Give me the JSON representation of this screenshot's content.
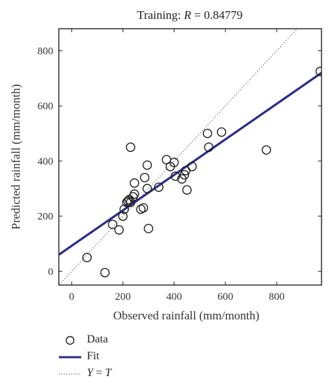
{
  "chart_data": {
    "type": "scatter",
    "title_prefix": "Training: ",
    "title_r": "R",
    "title_suffix": " = 0.84779",
    "xlabel": "Observed rainfall (mm/month)",
    "ylabel": "Predicted rainfall (mm/month)",
    "xlim": [
      -50,
      975
    ],
    "ylim": [
      -50,
      880
    ],
    "xticks": [
      0,
      200,
      400,
      600,
      800
    ],
    "yticks": [
      0,
      200,
      400,
      600,
      800
    ],
    "grid": false,
    "legend_placement": "bottom",
    "series": [
      {
        "name": "Data",
        "kind": "points",
        "marker": "open-circle",
        "color": "#222222",
        "points": [
          [
            60,
            50
          ],
          [
            130,
            -5
          ],
          [
            160,
            170
          ],
          [
            185,
            150
          ],
          [
            200,
            200
          ],
          [
            205,
            225
          ],
          [
            215,
            250
          ],
          [
            220,
            255
          ],
          [
            225,
            260
          ],
          [
            230,
            250
          ],
          [
            230,
            450
          ],
          [
            240,
            270
          ],
          [
            245,
            280
          ],
          [
            245,
            320
          ],
          [
            270,
            225
          ],
          [
            280,
            230
          ],
          [
            285,
            340
          ],
          [
            295,
            300
          ],
          [
            295,
            385
          ],
          [
            300,
            155
          ],
          [
            340,
            305
          ],
          [
            370,
            405
          ],
          [
            385,
            380
          ],
          [
            400,
            395
          ],
          [
            405,
            345
          ],
          [
            430,
            335
          ],
          [
            440,
            350
          ],
          [
            445,
            365
          ],
          [
            450,
            295
          ],
          [
            470,
            380
          ],
          [
            530,
            500
          ],
          [
            535,
            450
          ],
          [
            585,
            505
          ],
          [
            760,
            440
          ],
          [
            970,
            725
          ]
        ]
      },
      {
        "name": "Fit",
        "kind": "line",
        "color": "#2d2d8a",
        "points": [
          [
            -50,
            60
          ],
          [
            975,
            720
          ]
        ]
      },
      {
        "name": "Y = T",
        "kind": "dotted-line",
        "color": "#777777",
        "points": [
          [
            -50,
            -50
          ],
          [
            975,
            975
          ]
        ]
      }
    ]
  },
  "legend": {
    "data_label": "Data",
    "fit_label": "Fit",
    "yt_y": "Y",
    "yt_eq": " = ",
    "yt_t": "T"
  }
}
